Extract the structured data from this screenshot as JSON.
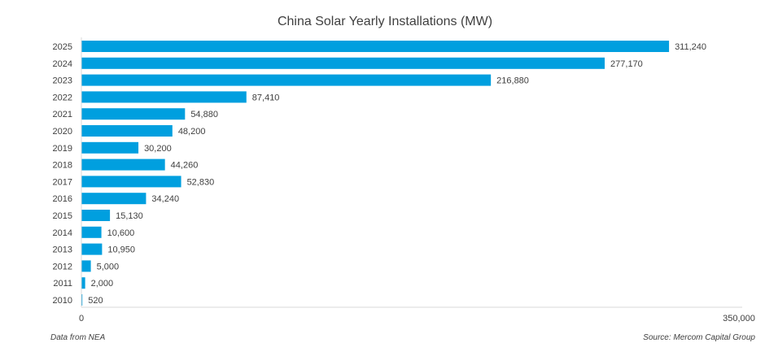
{
  "colors": {
    "bar": "#009fdf",
    "axis": "#d9d9d9",
    "text": "#404040"
  },
  "footnotes": {
    "left": "Data from NEA",
    "right": "Source: Mercom Capital Group"
  },
  "chart_data": {
    "type": "bar",
    "orientation": "horizontal",
    "title": "China Solar Yearly Installations (MW)",
    "xlabel": "",
    "ylabel": "",
    "xlim": [
      0,
      350000
    ],
    "x_ticks": [
      0,
      350000
    ],
    "x_tick_labels": [
      "0",
      "350,000"
    ],
    "grid": false,
    "legend": "none",
    "categories": [
      "2025",
      "2024",
      "2023",
      "2022",
      "2021",
      "2020",
      "2019",
      "2018",
      "2017",
      "2016",
      "2015",
      "2014",
      "2013",
      "2012",
      "2011",
      "2010"
    ],
    "values": [
      311240,
      277170,
      216880,
      87410,
      54880,
      48200,
      30200,
      44260,
      52830,
      34240,
      15130,
      10600,
      10950,
      5000,
      2000,
      520
    ],
    "value_labels": [
      "311,240",
      "277,170",
      "216,880",
      "87,410",
      "54,880",
      "48,200",
      "30,200",
      "44,260",
      "52,830",
      "34,240",
      "15,130",
      "10,600",
      "10,950",
      "5,000",
      "2,000",
      "520"
    ]
  }
}
